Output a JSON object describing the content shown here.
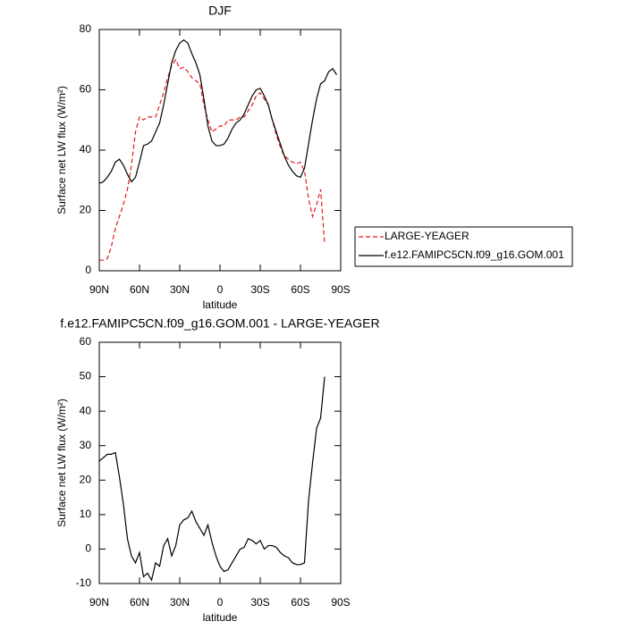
{
  "chart_data": [
    {
      "type": "line",
      "title": "DJF",
      "xlabel": "latitude",
      "ylabel": "Surface net LW flux (W/m²)",
      "x": [
        90,
        87,
        84,
        81,
        78,
        75,
        72,
        69,
        66,
        63,
        60,
        57,
        54,
        51,
        48,
        45,
        42,
        39,
        36,
        33,
        30,
        27,
        24,
        21,
        18,
        15,
        12,
        9,
        6,
        3,
        0,
        -3,
        -6,
        -9,
        -12,
        -15,
        -18,
        -21,
        -24,
        -27,
        -30,
        -33,
        -36,
        -39,
        -42,
        -45,
        -48,
        -51,
        -54,
        -57,
        -60,
        -63,
        -66,
        -69,
        -72,
        -75,
        -78,
        -81,
        -84,
        -87
      ],
      "series": [
        {
          "name": "LARGE-YEAGER",
          "color": "#e41a1c",
          "dash": true,
          "values": [
            3.5,
            3.5,
            4,
            8,
            14,
            18,
            22,
            27,
            35,
            46,
            51,
            50,
            51,
            51,
            51,
            55,
            59,
            64,
            68,
            70,
            67,
            67.5,
            66,
            64,
            63,
            62,
            55,
            50,
            46,
            47,
            48,
            48,
            50,
            50,
            50,
            51,
            51,
            53,
            55,
            58,
            59,
            57,
            55,
            50,
            45,
            41,
            38,
            37,
            36,
            35.5,
            36,
            33,
            24,
            18,
            22,
            27,
            9,
            null,
            null,
            null
          ]
        },
        {
          "name": "f.e12.FAMIPC5CN.f09_g16.GOM.001",
          "color": "#000000",
          "dash": false,
          "values": [
            29,
            29.5,
            31,
            33,
            36,
            37,
            35,
            32,
            29.5,
            31,
            36,
            41.5,
            42,
            43,
            46,
            49,
            55,
            62,
            69,
            73,
            75.5,
            76.5,
            75.5,
            72,
            69,
            65,
            57,
            48,
            43,
            41.5,
            41.5,
            42,
            44,
            47,
            49,
            50,
            52,
            55,
            58,
            60,
            60.5,
            58,
            55,
            50,
            46,
            42,
            38,
            35,
            33,
            31.5,
            31,
            34,
            42,
            50,
            57,
            62,
            63,
            66,
            67,
            65
          ]
        }
      ],
      "xlim": [
        90,
        -90
      ],
      "xticks": [
        {
          "value": 90,
          "label": "90N"
        },
        {
          "value": 60,
          "label": "60N"
        },
        {
          "value": 30,
          "label": "30N"
        },
        0,
        {
          "value": -30,
          "label": "30S"
        },
        {
          "value": -60,
          "label": "60S"
        },
        {
          "value": -90,
          "label": "90S"
        }
      ],
      "ylim": [
        0,
        80
      ],
      "yticks": [
        0,
        20,
        40,
        60,
        80
      ],
      "legend": "right"
    },
    {
      "type": "line",
      "title": "f.e12.FAMIPC5CN.f09_g16.GOM.001 - LARGE-YEAGER",
      "xlabel": "latitude",
      "ylabel": "Surface net LW flux (W/m²)",
      "x": [
        90,
        87,
        84,
        81,
        78,
        75,
        72,
        69,
        66,
        63,
        60,
        57,
        54,
        51,
        48,
        45,
        42,
        39,
        36,
        33,
        30,
        27,
        24,
        21,
        18,
        15,
        12,
        9,
        6,
        3,
        0,
        -3,
        -6,
        -9,
        -12,
        -15,
        -18,
        -21,
        -24,
        -27,
        -30,
        -33,
        -36,
        -39,
        -42,
        -45,
        -48,
        -51,
        -54,
        -57,
        -60,
        -63,
        -66,
        -69,
        -72,
        -75,
        -78
      ],
      "series": [
        {
          "color": "#000000",
          "dash": false,
          "values": [
            25.5,
            26.5,
            27.5,
            27.5,
            28,
            21,
            13,
            3,
            -2,
            -4,
            -1,
            -8,
            -7,
            -9,
            -4,
            -5,
            1,
            3,
            -2,
            1,
            7,
            8.5,
            9,
            11,
            8,
            6,
            4,
            7,
            2,
            -2,
            -5,
            -6.5,
            -6,
            -4,
            -2,
            0,
            0.5,
            3,
            2.5,
            1.5,
            2.5,
            0,
            1,
            1,
            0.5,
            -1,
            -2,
            -2.5,
            -4,
            -4.5,
            -4.5,
            -4,
            14,
            25,
            35,
            38,
            50
          ]
        }
      ],
      "xlim": [
        90,
        -90
      ],
      "xticks": [
        {
          "value": 90,
          "label": "90N"
        },
        {
          "value": 60,
          "label": "60N"
        },
        {
          "value": 30,
          "label": "30N"
        },
        0,
        {
          "value": -30,
          "label": "30S"
        },
        {
          "value": -60,
          "label": "60S"
        },
        {
          "value": -90,
          "label": "90S"
        }
      ],
      "ylim": [
        -10,
        60
      ],
      "yticks": [
        -10,
        0,
        10,
        20,
        30,
        40,
        50,
        60
      ]
    }
  ]
}
